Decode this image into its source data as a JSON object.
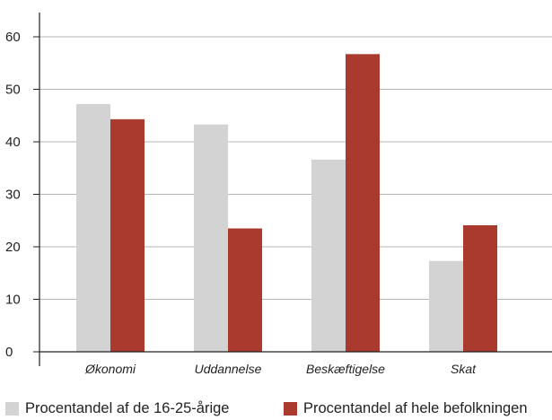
{
  "chart_data": {
    "type": "bar",
    "categories": [
      "Økonomi",
      "Uddannelse",
      "Beskæftigelse",
      "Skat"
    ],
    "series": [
      {
        "name": "Procentandel af de 16-25-årige",
        "values": [
          47.2,
          43.3,
          36.6,
          17.3
        ],
        "color": "#d3d3d3"
      },
      {
        "name": "Procentandel af hele befolkningen",
        "values": [
          44.3,
          23.5,
          56.7,
          24.1
        ],
        "color": "#aa3a2e"
      }
    ],
    "yticks": [
      0,
      10,
      20,
      30,
      40,
      50,
      60
    ],
    "ylim": [
      0,
      60
    ],
    "grid": true,
    "legend_position": "bottom",
    "title": "",
    "xlabel": "",
    "ylabel": ""
  }
}
